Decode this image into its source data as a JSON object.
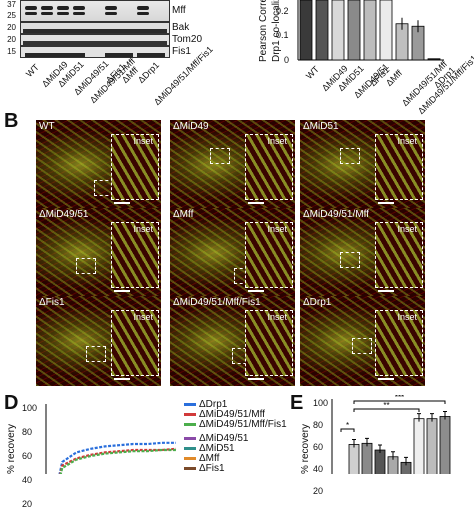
{
  "panelA": {
    "blot_labels": [
      "Mff",
      "Bak",
      "Tom20",
      "Fis1"
    ],
    "mw_markers": [
      "37",
      "25",
      "20",
      "20",
      "15"
    ],
    "lanes": [
      "WT",
      "ΔMiD49",
      "ΔMiD51",
      "ΔMiD49/51",
      "ΔMiD49/51/Mff",
      "ΔFis1",
      "ΔMff",
      "ΔDrp1",
      "ΔMiD49/51/Mff/Fis1"
    ]
  },
  "panelC": {
    "ylabel": "Pearson Correl\nDrp1 co-localiz",
    "ticks": [
      "0.2",
      "0.1",
      "0"
    ],
    "bar_labels": [
      "WT",
      "ΔMiD49",
      "ΔMiD51",
      "ΔMiD49/51",
      "ΔFis1",
      "ΔMff",
      "ΔMiD49/51/Mff",
      "ΔMiD49/51/Mff/Fis1",
      "ΔDrp1"
    ]
  },
  "chart_data": [
    {
      "type": "bar",
      "categories": [
        "WT",
        "ΔMiD49",
        "ΔMiD51",
        "ΔMiD49/51",
        "ΔFis1",
        "ΔMff",
        "ΔMiD49/51/Mff",
        "ΔMiD49/51/Mff/Fis1",
        "ΔDrp1"
      ],
      "values": [
        0.24,
        0.24,
        0.24,
        0.24,
        0.24,
        0.24,
        0.145,
        0.135,
        0.005
      ],
      "ylim": [
        0,
        0.24
      ],
      "colors": [
        "#3a3a3a",
        "#555555",
        "#d8d8d8",
        "#8a8a8a",
        "#bdbdbd",
        "#ebebeb",
        "#bfbfbf",
        "#9a9a9a",
        "#222222"
      ]
    },
    {
      "type": "line",
      "xlabel": "",
      "ylabel": "% recovery",
      "yticks": [
        "100",
        "80",
        "60",
        "40",
        "20"
      ],
      "ylim": [
        0,
        100
      ],
      "legend_position": "right",
      "series": [
        {
          "name": "ΔDrp1",
          "color": "#2a6fdc",
          "values": [
            0,
            55,
            63,
            66,
            68,
            69,
            70,
            70,
            71,
            71
          ]
        },
        {
          "name": "ΔMiD49/51/Mff",
          "color": "#d13a3a",
          "values": [
            0,
            52,
            58,
            61,
            63,
            64,
            65,
            65,
            65,
            66
          ]
        },
        {
          "name": "ΔMiD49/51/Mff/Fis1",
          "color": "#4cae4c",
          "values": [
            0,
            50,
            57,
            60,
            62,
            63,
            64,
            64,
            65,
            65
          ]
        },
        {
          "name": "ΔMiD49/51",
          "color": "#8a4aa8",
          "values": [
            0,
            20,
            26,
            29,
            31,
            32,
            33,
            33,
            34,
            34
          ]
        },
        {
          "name": "ΔMiD51",
          "color": "#2f8f8a",
          "values": [
            0,
            19,
            25,
            28,
            30,
            31,
            32,
            32,
            33,
            33
          ]
        },
        {
          "name": "ΔMff",
          "color": "#e08a2a",
          "values": [
            0,
            17,
            22,
            25,
            27,
            28,
            29,
            29,
            30,
            30
          ]
        },
        {
          "name": "ΔFis1",
          "color": "#7a4a2a",
          "values": [
            0,
            8,
            12,
            14,
            16,
            17,
            18,
            18,
            19,
            19
          ]
        }
      ]
    },
    {
      "type": "bar",
      "ylabel": "% recovery",
      "yticks": [
        "100",
        "80",
        "60",
        "40",
        "20"
      ],
      "ylim": [
        0,
        100
      ],
      "values": [
        8,
        63,
        64,
        58,
        52,
        47,
        86,
        86,
        88
      ],
      "colors": [
        "#333333",
        "#cfcfcf",
        "#8a8a8a",
        "#555555",
        "#a9a9a9",
        "#6a6a6a",
        "#efefef",
        "#bcbcbc",
        "#8d8d8d"
      ],
      "significance": [
        "*",
        "**",
        "***"
      ]
    }
  ],
  "panelB": {
    "letter": "B",
    "tiles": [
      {
        "title": "WT"
      },
      {
        "title": "ΔMiD49"
      },
      {
        "title": "ΔMiD51"
      },
      {
        "title": "ΔMiD49/51"
      },
      {
        "title": "ΔMff"
      },
      {
        "title": "ΔMiD49/51/Mff"
      },
      {
        "title": "ΔFis1"
      },
      {
        "title": "ΔMiD49/51/Mff/Fis1"
      },
      {
        "title": "ΔDrp1"
      }
    ],
    "inset_label": "Inset"
  },
  "panelD": {
    "letter": "D"
  },
  "panelE": {
    "letter": "E"
  }
}
